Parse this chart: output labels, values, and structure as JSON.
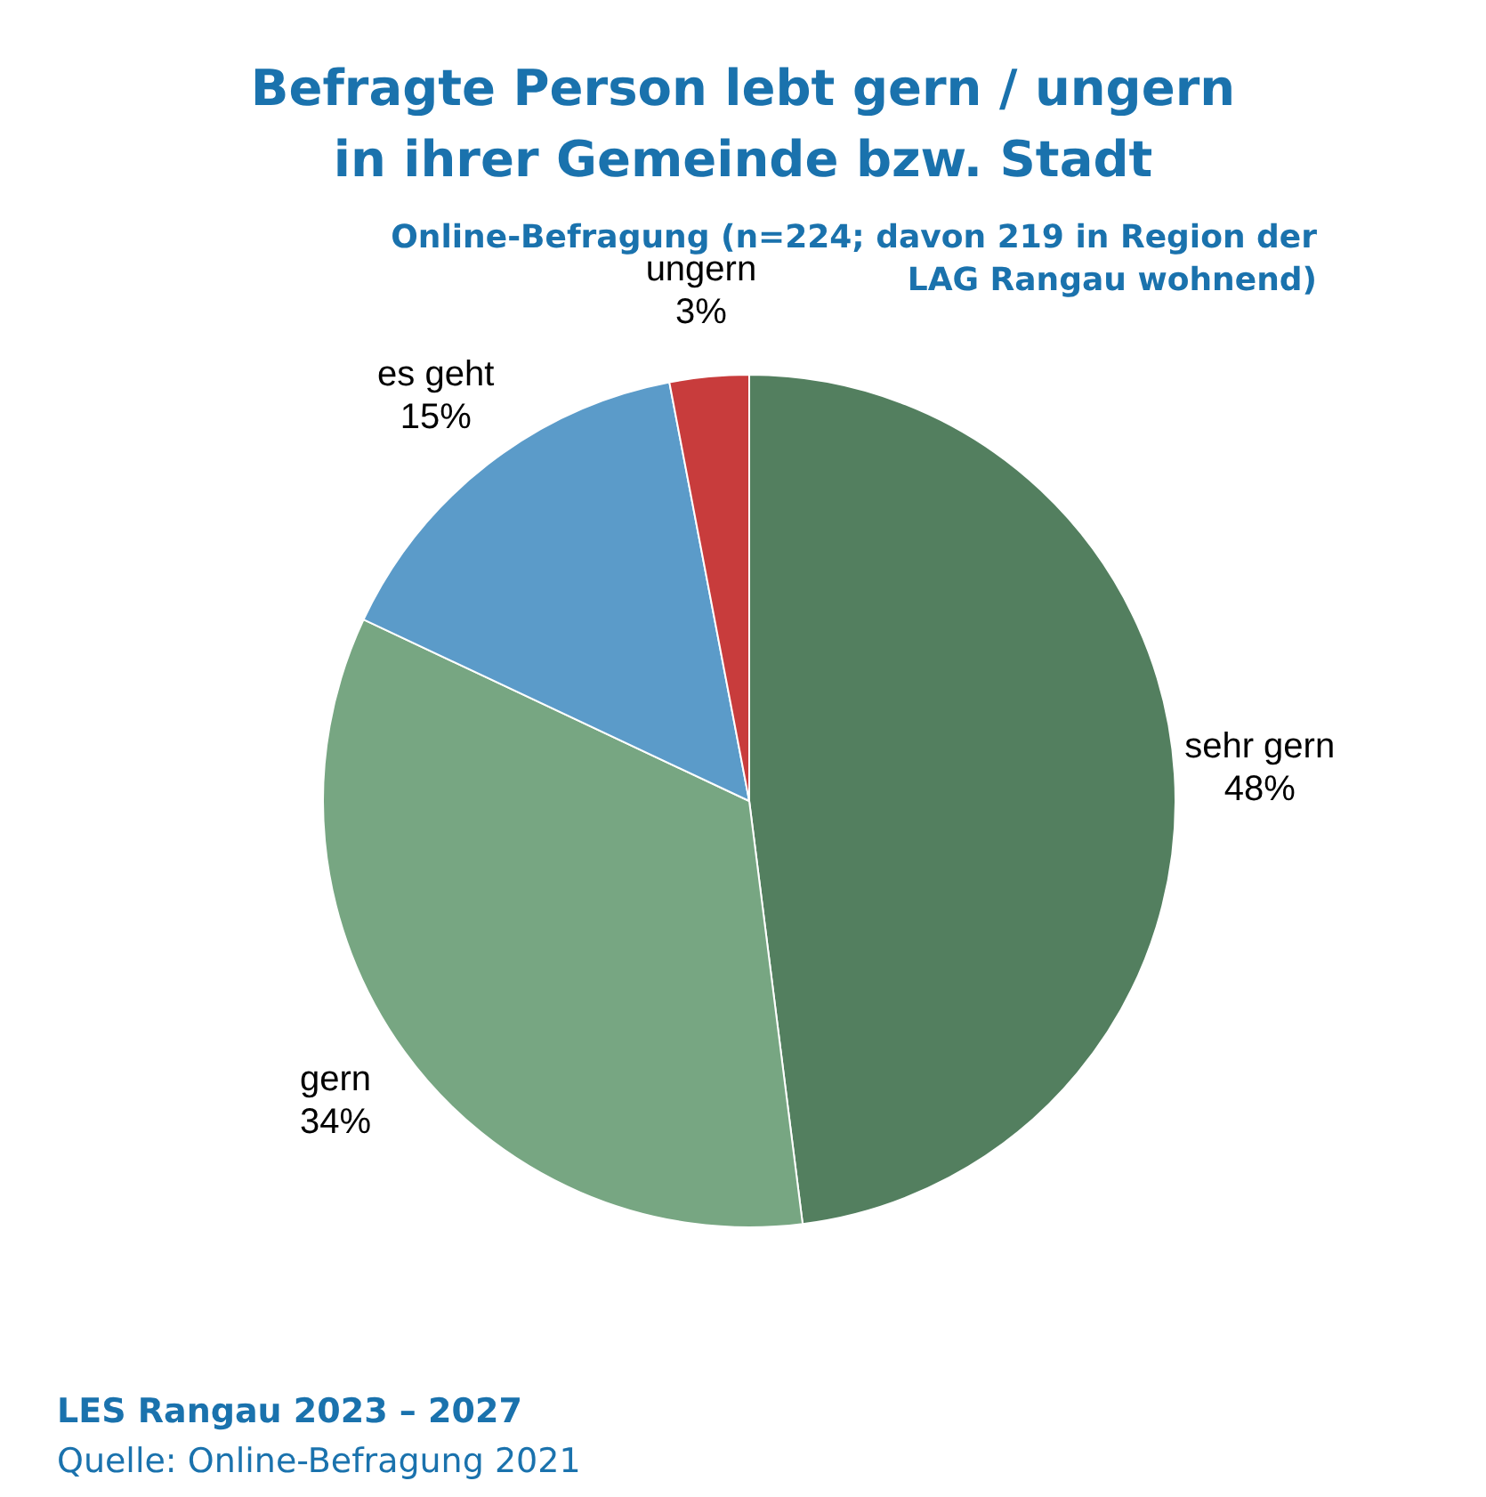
{
  "chart_data": {
    "type": "pie",
    "title": "Befragte Person lebt gern / ungern\nin ihrer Gemeinde bzw. Stadt",
    "subtitle": "Online-Befragung (n=224; davon 219 in Region der\nLAG Rangau wohnend)",
    "categories": [
      "sehr gern",
      "gern",
      "es geht",
      "ungern"
    ],
    "values": [
      48,
      34,
      15,
      3
    ],
    "value_labels": [
      "48%",
      "34%",
      "15%",
      "3%"
    ],
    "colors": [
      "#537f5f",
      "#77a682",
      "#5b9bc9",
      "#c83c3c"
    ],
    "legend": false,
    "annotations": [
      "LES Rangau 2023 – 2027",
      "Quelle: Online-Befragung 2021"
    ]
  }
}
